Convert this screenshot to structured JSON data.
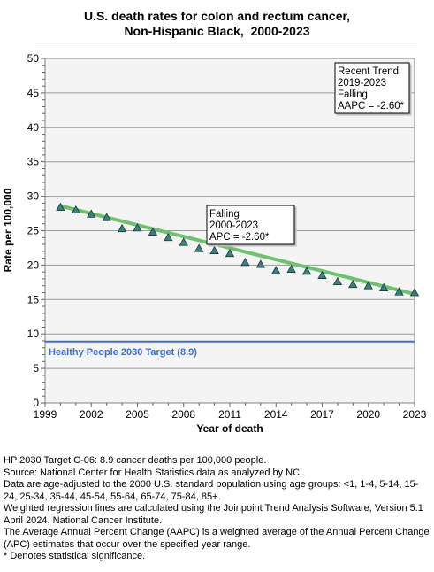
{
  "chart_data": {
    "type": "scatter",
    "title_lines": [
      "U.S. death rates for colon and rectum cancer,",
      "Non-Hispanic Black,  2000-2023"
    ],
    "xlabel": "Year of death",
    "ylabel": "Rate per 100,000",
    "xlim": [
      1999,
      2023
    ],
    "ylim": [
      0,
      50
    ],
    "x_ticks": [
      1999,
      2002,
      2005,
      2008,
      2011,
      2014,
      2017,
      2020,
      2023
    ],
    "y_ticks": [
      0,
      5,
      10,
      15,
      20,
      25,
      30,
      35,
      40,
      45,
      50
    ],
    "grid": true,
    "series": [
      {
        "x": [
          2000,
          2001,
          2002,
          2003,
          2004,
          2005,
          2006,
          2007,
          2008,
          2009,
          2010,
          2011,
          2012,
          2013,
          2014,
          2015,
          2016,
          2017,
          2018,
          2019,
          2020,
          2021,
          2022,
          2023
        ],
        "y": [
          28.4,
          28.0,
          27.4,
          26.9,
          25.3,
          25.4,
          24.8,
          24.0,
          23.3,
          22.4,
          22.1,
          21.7,
          20.4,
          20.1,
          19.2,
          19.4,
          19.1,
          18.5,
          17.6,
          17.2,
          17.0,
          16.7,
          16.1,
          16.0
        ],
        "color": "#3a8080"
      }
    ],
    "trend": {
      "x": [
        2000,
        2023
      ],
      "y": [
        28.6,
        15.8
      ],
      "color": "#6cc36c"
    },
    "target": {
      "label": "Healthy People 2030 Target (8.9)",
      "value": 8.9,
      "color": "#3a6fd8"
    },
    "annotations": [
      {
        "lines": [
          "Falling",
          "2000-2023",
          "APC = -2.60*"
        ]
      },
      {
        "lines": [
          "Recent Trend",
          "2019-2023",
          "Falling",
          "AAPC = -2.60*"
        ]
      }
    ]
  },
  "notes": [
    "HP 2030 Target C-06: 8.9 cancer deaths per 100,000 people.",
    "Source: National Center for Health Statistics data as analyzed by NCI.",
    "Data are age-adjusted to the 2000 U.S. standard population using age groups: <1, 1-4, 5-14, 15-24, 25-34, 35-44, 45-54, 55-64, 65-74, 75-84, 85+.",
    "Weighted regression lines are calculated using the Joinpoint Trend Analysis Software, Version 5.1 April 2024, National Cancer Institute.",
    "The Average Annual Percent Change (AAPC) is a weighted average of the Annual Percent Change (APC) estimates that occur over the specified year range.",
    "* Denotes statistical significance."
  ]
}
